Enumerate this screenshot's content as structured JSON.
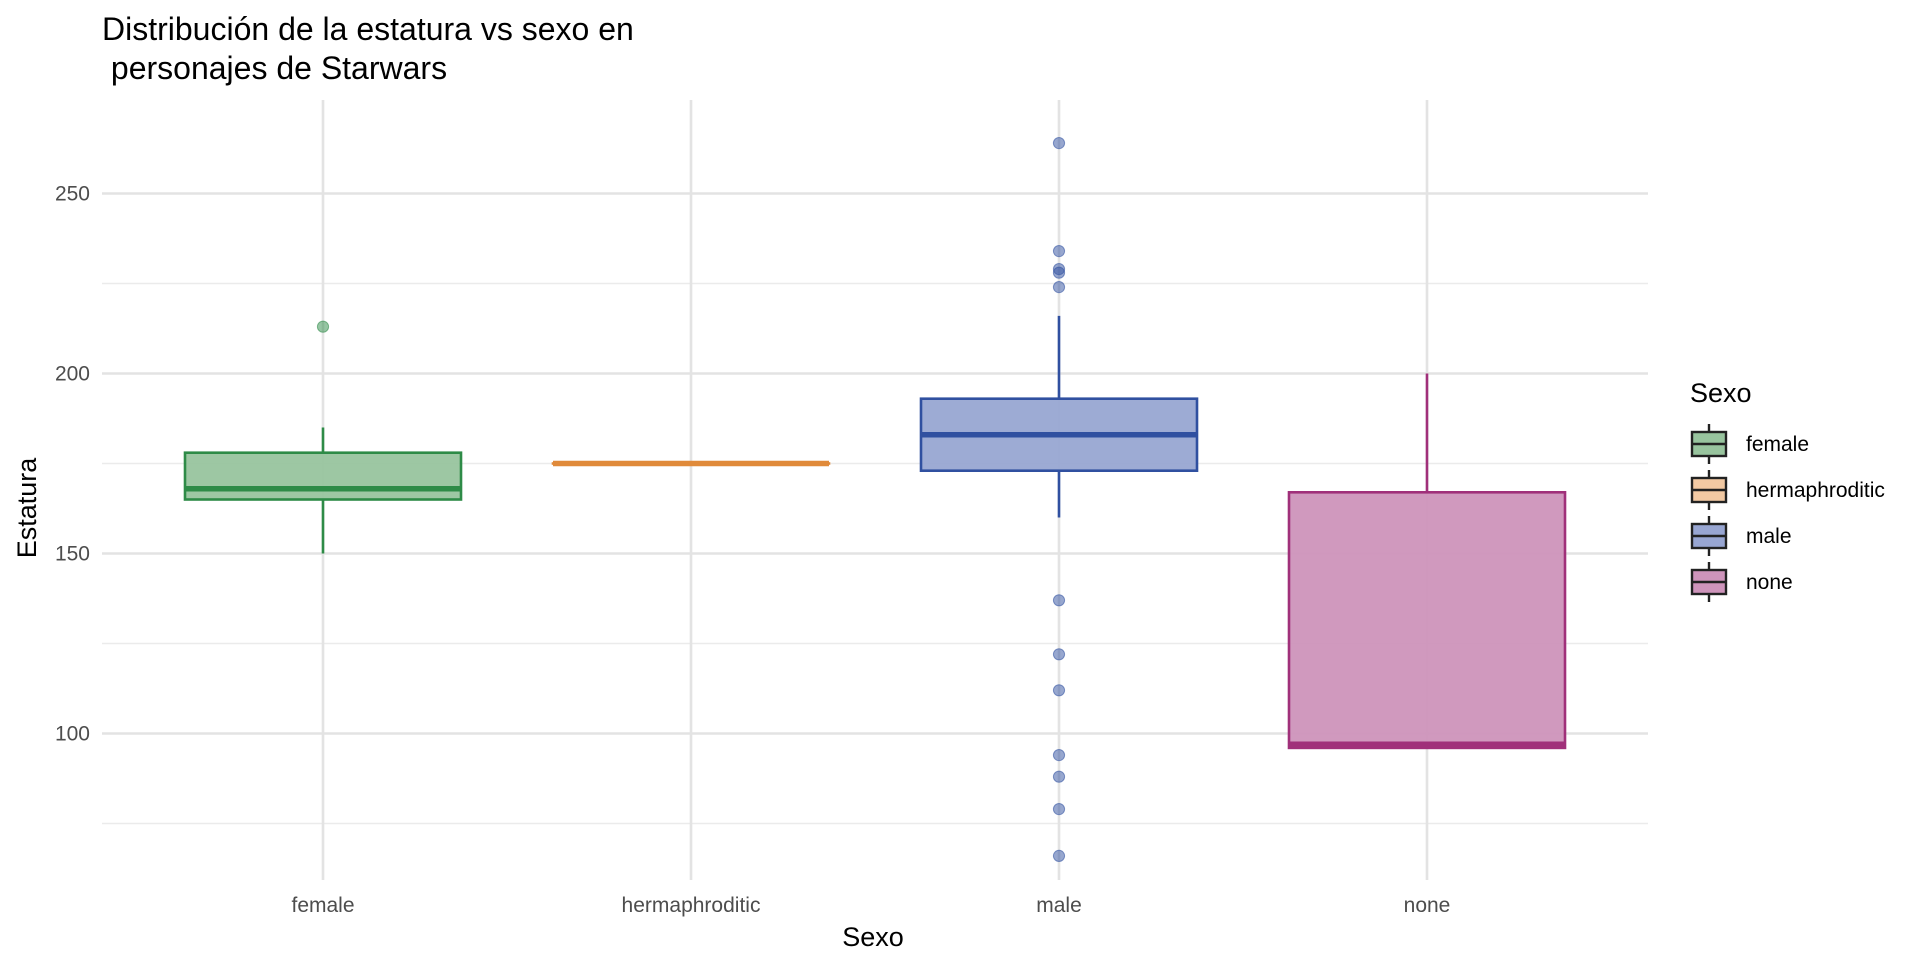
{
  "chart_data": {
    "type": "box",
    "title": "Distribución de la estatura vs sexo en\n personajes de Starwars",
    "xlabel": "Sexo",
    "ylabel": "Estatura",
    "ylim": [
      55,
      275
    ],
    "y_ticks": [
      100,
      150,
      200,
      250
    ],
    "grid": true,
    "legend": {
      "title": "Sexo",
      "position": "right"
    },
    "categories": [
      "female",
      "hermaphroditic",
      "male",
      "none"
    ],
    "series": [
      {
        "name": "female",
        "q1": 165,
        "median": 168,
        "q3": 178,
        "whisker_low": 150,
        "whisker_high": 185,
        "outliers": [
          213
        ],
        "color": "#2E8B47",
        "fill": "#98C49E"
      },
      {
        "name": "hermaphroditic",
        "q1": 175,
        "median": 175,
        "q3": 175,
        "whisker_low": 175,
        "whisker_high": 175,
        "outliers": [],
        "color": "#E08A3A",
        "fill": "#F2C9A3"
      },
      {
        "name": "male",
        "q1": 173,
        "median": 183,
        "q3": 193,
        "whisker_low": 160,
        "whisker_high": 216,
        "outliers": [
          264,
          234,
          229,
          228,
          224,
          137,
          122,
          112,
          94,
          88,
          79,
          66
        ],
        "color": "#3050A0",
        "fill": "#98A6D2"
      },
      {
        "name": "none",
        "q1": 96,
        "median": 97,
        "q3": 167,
        "whisker_low": 96,
        "whisker_high": 200,
        "outliers": [],
        "color": "#A0307A",
        "fill": "#CE94BB"
      }
    ]
  }
}
